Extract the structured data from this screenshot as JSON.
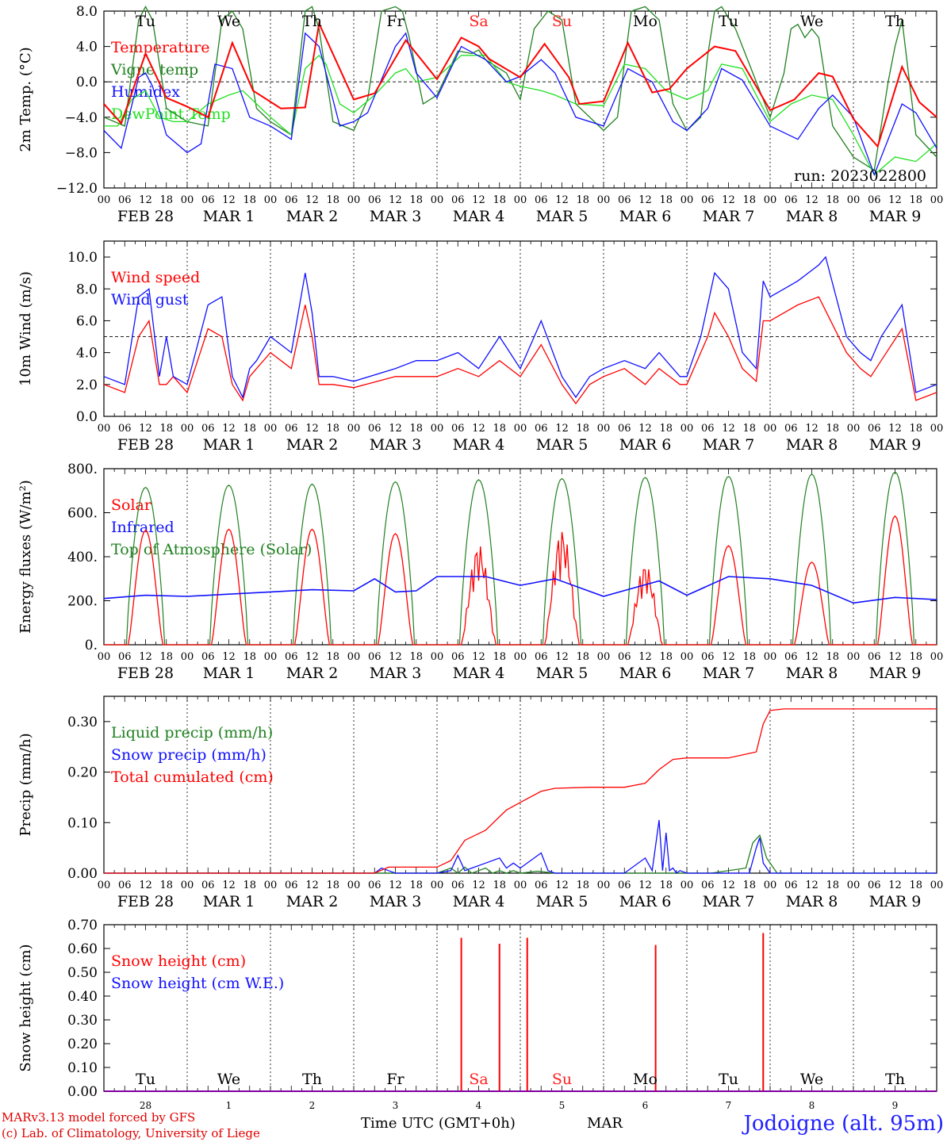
{
  "run_label": "run: 2023022800",
  "station": "Jodoigne (alt. 95m)",
  "credit_line1": "MARv3.13 model forced by GFS",
  "credit_line2": "(c) Lab. of Climatology, University of Liege",
  "time_axis_label": "Time UTC (GMT+0h)",
  "month_label": "MAR",
  "hour_ticks": [
    "00",
    "06",
    "12",
    "18"
  ],
  "date_labels": [
    "FEB 28",
    "MAR  1",
    "MAR  2",
    "MAR  3",
    "MAR  4",
    "MAR  5",
    "MAR  6",
    "MAR  7",
    "MAR  8",
    "MAR  9"
  ],
  "bottom_day_numbers": [
    "28",
    "1",
    "2",
    "3",
    "4",
    "5",
    "6",
    "7",
    "8",
    "9"
  ],
  "weekdays": [
    "Tu",
    "We",
    "Th",
    "Fr",
    "Sa",
    "Su",
    "Mo",
    "Tu",
    "We",
    "Th"
  ],
  "weekend_days": [
    "Sa",
    "Su"
  ],
  "colors": {
    "red": "#ff0000",
    "green": "#208020",
    "blue": "#1010ff",
    "light_green": "#20e020",
    "weekend": "#ff2020",
    "station": "#2020ff"
  },
  "chart_data": [
    {
      "type": "line",
      "ylabel": "2m Temp. (°C)",
      "ylim": [
        -12,
        8
      ],
      "yticks": [
        "8.0",
        "4.0",
        "0.0",
        "−4.0",
        "−8.0",
        "−12.0"
      ],
      "ytick_values": [
        8,
        4,
        0,
        -4,
        -8,
        -12
      ],
      "reference_line": 0,
      "x_unit": "hours since FEB 28 00 UTC",
      "series": [
        {
          "name": "Temperature",
          "color": "red",
          "x": [
            0,
            5,
            12,
            18,
            24,
            30,
            37,
            43,
            51,
            58,
            62,
            72,
            78,
            87,
            96,
            103,
            108,
            111,
            120,
            127,
            134,
            137,
            144,
            151,
            158,
            163,
            168,
            176,
            182,
            192,
            199,
            206,
            210,
            216,
            223,
            230,
            235,
            240
          ],
          "y": [
            -2.5,
            -4.7,
            3.2,
            -1.8,
            -2.8,
            -4,
            4.4,
            -1,
            -3,
            -2.9,
            6.6,
            -2,
            -1.3,
            4.7,
            0.3,
            5,
            4,
            2.6,
            0.5,
            4.3,
            0.5,
            -2.5,
            -2.2,
            4.4,
            -1.2,
            -0.8,
            1.5,
            4,
            3.5,
            -3.2,
            -2,
            1,
            0.6,
            -4.2,
            -7.3,
            1.7,
            -2.3,
            -4
          ]
        },
        {
          "name": "Vigne temp",
          "color": "green",
          "x": [
            0,
            6,
            10,
            12,
            14,
            18,
            24,
            30,
            34,
            37,
            40,
            44,
            48,
            54,
            58,
            60,
            62,
            66,
            72,
            76,
            80,
            84,
            86,
            88,
            92,
            96,
            102,
            106,
            108,
            110,
            112,
            116,
            120,
            124,
            128,
            132,
            136,
            144,
            148,
            152,
            156,
            160,
            164,
            168,
            172,
            174,
            176,
            178,
            182,
            186,
            192,
            196,
            198,
            200,
            202,
            204,
            206,
            210,
            216,
            222,
            226,
            228,
            230,
            234,
            240
          ],
          "y": [
            -4,
            -5,
            7,
            8.5,
            7,
            -3,
            -4.5,
            -5,
            7,
            8,
            6,
            -3,
            -4.5,
            -6,
            8,
            8.5,
            6,
            -4.5,
            -5.5,
            -2,
            8,
            8.5,
            8,
            5,
            -2.5,
            -1.5,
            3.5,
            3.2,
            3.6,
            2.5,
            2,
            1,
            -2,
            6,
            8,
            7,
            -2.5,
            -5.5,
            -4,
            8,
            8.5,
            7,
            -2.5,
            -5.5,
            -4,
            3,
            8,
            8.5,
            6,
            2,
            -4,
            1,
            6,
            6.5,
            5,
            6,
            5,
            -5,
            -8.5,
            -10,
            0,
            4,
            7,
            -6,
            -8.5
          ]
        },
        {
          "name": "Humidex",
          "color": "blue",
          "x": [
            0,
            5,
            10,
            12,
            14,
            18,
            24,
            28,
            32,
            37,
            42,
            48,
            54,
            58,
            62,
            68,
            72,
            76,
            84,
            87,
            90,
            96,
            103,
            110,
            116,
            120,
            126,
            130,
            136,
            144,
            151,
            158,
            164,
            168,
            174,
            178,
            184,
            192,
            200,
            206,
            210,
            216,
            222,
            230,
            234,
            240
          ],
          "y": [
            -5.5,
            -7.5,
            0.5,
            1,
            -0.5,
            -6,
            -8,
            -7,
            2,
            1.5,
            -4,
            -5,
            -6.5,
            5.5,
            4,
            -5,
            -4.5,
            -3.5,
            4,
            5.5,
            1,
            -1.8,
            4,
            2.5,
            0,
            0.6,
            2.5,
            1,
            -4,
            -5,
            1.5,
            0,
            -4.5,
            -5.5,
            -3,
            1.5,
            0.2,
            -5,
            -6.5,
            -3,
            -1.5,
            -4,
            -10.5,
            -2.5,
            -3.5,
            -7.5
          ]
        },
        {
          "name": "DewPoint Temp",
          "color": "light_green",
          "x": [
            0,
            4,
            8,
            12,
            16,
            20,
            24,
            30,
            36,
            40,
            48,
            54,
            58,
            62,
            64,
            68,
            72,
            78,
            84,
            87,
            90,
            96,
            103,
            110,
            116,
            120,
            126,
            130,
            136,
            144,
            150,
            156,
            162,
            168,
            174,
            178,
            184,
            192,
            198,
            204,
            210,
            216,
            222,
            228,
            234,
            240
          ],
          "y": [
            -5,
            -5,
            -2,
            -1,
            -4,
            -4.5,
            -4.5,
            -2.5,
            -1.5,
            -1,
            -4,
            -6,
            1.5,
            3,
            2,
            -2.5,
            -3.5,
            -1.5,
            1,
            1.5,
            0,
            0.5,
            3,
            3,
            0,
            -0.5,
            -1,
            -1.5,
            -2.5,
            -2.7,
            2,
            1.5,
            -1,
            -2,
            -1,
            2,
            1.5,
            -4.5,
            -2.5,
            -1.5,
            -2,
            -6,
            -10.5,
            -8.5,
            -9,
            -7
          ]
        }
      ]
    },
    {
      "type": "line",
      "ylabel": "10m Wind (m/s)",
      "ylim": [
        0,
        11
      ],
      "yticks": [
        "10.0",
        "8.0",
        "6.0",
        "4.0",
        "2.0",
        "0.0"
      ],
      "ytick_values": [
        10,
        8,
        6,
        4,
        2,
        0
      ],
      "reference_line": 5,
      "x_unit": "hours since FEB 28 00 UTC",
      "series": [
        {
          "name": "Wind speed",
          "color": "red",
          "x": [
            0,
            6,
            10,
            13,
            16,
            18,
            20,
            24,
            30,
            34,
            37,
            40,
            42,
            44,
            48,
            54,
            58,
            60,
            62,
            66,
            72,
            84,
            90,
            96,
            102,
            108,
            114,
            120,
            126,
            132,
            136,
            140,
            144,
            150,
            156,
            160,
            166,
            168,
            172,
            174,
            176,
            180,
            184,
            188,
            190,
            192,
            196,
            200,
            206,
            214,
            218,
            221,
            224,
            230,
            234,
            240
          ],
          "y": [
            2,
            1.5,
            5,
            6,
            2,
            2,
            2.5,
            1.5,
            5.5,
            5,
            2,
            1,
            2.5,
            3,
            4,
            3,
            7,
            5,
            2,
            2,
            1.8,
            2.5,
            2.5,
            2.5,
            3,
            2.5,
            3.5,
            2.5,
            4.5,
            2,
            0.8,
            2,
            2.5,
            3,
            2,
            3,
            2,
            2,
            4,
            5,
            6.5,
            5,
            3,
            2.2,
            6,
            6,
            6.5,
            7,
            7.5,
            4,
            3,
            2.5,
            3.5,
            5.5,
            1,
            1.5
          ]
        },
        {
          "name": "Wind gust",
          "color": "blue",
          "x": [
            0,
            6,
            10,
            13,
            16,
            18,
            20,
            24,
            30,
            34,
            37,
            40,
            42,
            44,
            48,
            54,
            58,
            60,
            62,
            66,
            72,
            84,
            90,
            96,
            102,
            108,
            114,
            120,
            126,
            132,
            136,
            140,
            144,
            150,
            156,
            160,
            166,
            168,
            172,
            174,
            176,
            180,
            184,
            188,
            190,
            192,
            196,
            200,
            206,
            208,
            214,
            218,
            221,
            224,
            230,
            234,
            240
          ],
          "y": [
            2.5,
            2,
            7.5,
            8,
            2.5,
            5,
            2.5,
            2,
            7,
            7.5,
            2.5,
            1.2,
            3,
            3.5,
            5,
            4,
            9,
            6.5,
            2.5,
            2.5,
            2.2,
            3,
            3.5,
            3.5,
            4,
            3,
            5,
            3,
            6,
            2.5,
            1.2,
            2.5,
            3,
            3.5,
            3,
            4,
            2.5,
            2.5,
            5,
            7,
            9,
            8,
            4,
            3,
            8.5,
            7.5,
            8,
            8.5,
            9.5,
            10,
            5,
            4,
            3.5,
            5,
            7,
            1.5,
            2
          ]
        }
      ]
    },
    {
      "type": "line",
      "ylabel": "Energy fluxes (W/m²)",
      "ylim": [
        0,
        800
      ],
      "yticks": [
        "800.",
        "600.",
        "400.",
        "200.",
        "0."
      ],
      "ytick_values": [
        800,
        600,
        400,
        200,
        0
      ],
      "x_unit": "hours since FEB 28 00 UTC",
      "solar_peaks": [
        520,
        525,
        525,
        505,
        460,
        530,
        370,
        450,
        375,
        585
      ],
      "toa_peaks": [
        715,
        725,
        730,
        740,
        750,
        755,
        760,
        765,
        775,
        785
      ],
      "series": [
        {
          "name": "Solar",
          "color": "red"
        },
        {
          "name": "Infrared",
          "color": "blue",
          "x": [
            0,
            12,
            24,
            36,
            48,
            60,
            72,
            78,
            84,
            90,
            96,
            110,
            120,
            130,
            144,
            160,
            168,
            180,
            192,
            204,
            216,
            228,
            240
          ],
          "y": [
            210,
            225,
            220,
            230,
            240,
            250,
            245,
            300,
            240,
            245,
            310,
            310,
            270,
            300,
            220,
            290,
            225,
            310,
            300,
            270,
            190,
            215,
            205
          ]
        },
        {
          "name": "Top of Atmosphere (Solar)",
          "color": "green"
        }
      ]
    },
    {
      "type": "line",
      "ylabel": "Precip (mm/h)",
      "ylim": [
        0,
        0.35
      ],
      "yticks": [
        "0.30",
        "0.20",
        "0.10",
        "0.00"
      ],
      "ytick_values": [
        0.3,
        0.2,
        0.1,
        0
      ],
      "x_unit": "hours since FEB 28 00 UTC",
      "series": [
        {
          "name": "Liquid precip (mm/h)",
          "color": "green",
          "x": [
            0,
            95,
            96,
            100,
            102,
            104,
            106,
            108,
            110,
            112,
            114,
            116,
            118,
            120,
            125,
            130,
            150,
            175,
            185,
            187,
            189,
            191,
            194,
            240
          ],
          "y": [
            0,
            0,
            0,
            0.01,
            0,
            0.012,
            0,
            0.005,
            0.01,
            0,
            0.005,
            0,
            0.005,
            0,
            0.004,
            0,
            0,
            0,
            0.01,
            0.06,
            0.075,
            0.03,
            0,
            0
          ]
        },
        {
          "name": "Snow precip (mm/h)",
          "color": "blue",
          "x": [
            0,
            78,
            80,
            82,
            84,
            96,
            100,
            102,
            104,
            106,
            110,
            114,
            116,
            118,
            120,
            126,
            128,
            130,
            150,
            156,
            158,
            160,
            161,
            162,
            163,
            164,
            165,
            166,
            168,
            170,
            186,
            188,
            189,
            190,
            192,
            240
          ],
          "y": [
            0,
            0,
            0.01,
            0.005,
            0,
            0,
            0.005,
            0.035,
            0.005,
            0.01,
            0.02,
            0.03,
            0.01,
            0.02,
            0.01,
            0.04,
            0.005,
            0,
            0,
            0.03,
            0.005,
            0.105,
            0.005,
            0.08,
            0.005,
            0.01,
            0,
            0.005,
            0,
            0,
            0,
            0.05,
            0.07,
            0.02,
            0,
            0
          ]
        },
        {
          "name": "Total cumulated (cm)",
          "color": "red",
          "x": [
            0,
            78,
            82,
            96,
            100,
            104,
            110,
            116,
            120,
            126,
            130,
            140,
            150,
            156,
            160,
            164,
            168,
            180,
            188,
            190,
            192,
            196,
            240
          ],
          "y": [
            0,
            0,
            0.012,
            0.012,
            0.025,
            0.065,
            0.085,
            0.125,
            0.14,
            0.162,
            0.168,
            0.17,
            0.17,
            0.178,
            0.205,
            0.225,
            0.228,
            0.228,
            0.24,
            0.295,
            0.322,
            0.325,
            0.325
          ]
        }
      ]
    },
    {
      "type": "line",
      "ylabel": "Snow height (cm)",
      "ylim": [
        0,
        0.7
      ],
      "yticks": [
        "0.70",
        "0.60",
        "0.50",
        "0.40",
        "0.30",
        "0.20",
        "0.10",
        "0.00"
      ],
      "ytick_values": [
        0.7,
        0.6,
        0.5,
        0.4,
        0.3,
        0.2,
        0.1,
        0
      ],
      "x_unit": "hours since FEB 28 00 UTC",
      "series": [
        {
          "name": "Snow height (cm)",
          "color": "red",
          "spikes_x": [
            103,
            114,
            122,
            159,
            190
          ],
          "spikes_y": [
            0.645,
            0.62,
            0.645,
            0.615,
            0.665
          ]
        },
        {
          "name": "Snow height (cm W.E.)",
          "color": "blue",
          "spikes_x": [],
          "spikes_y": []
        }
      ]
    }
  ]
}
